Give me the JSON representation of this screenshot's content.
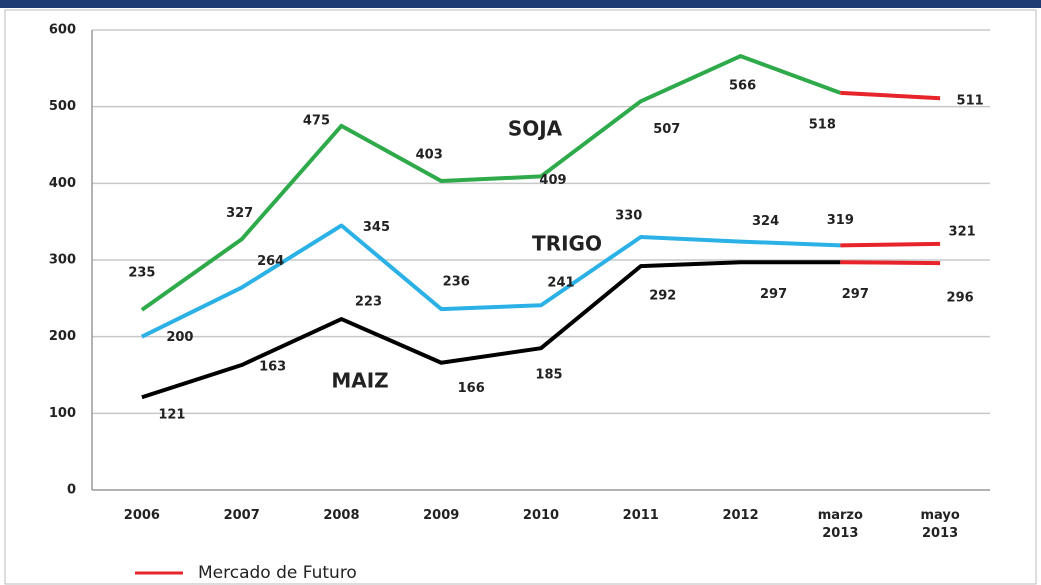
{
  "chart_data": {
    "type": "line",
    "categories": [
      "2006",
      "2007",
      "2008",
      "2009",
      "2010",
      "2011",
      "2012",
      "marzo 2013",
      "mayo 2013"
    ],
    "series": [
      {
        "name": "SOJA",
        "color": "#2eaa4a",
        "label_color": "#4f6b2a",
        "values": [
          235,
          327,
          475,
          403,
          409,
          507,
          566,
          518,
          511
        ]
      },
      {
        "name": "TRIGO",
        "color": "#2bb1e6",
        "label_color": "#3a64a0",
        "values": [
          200,
          264,
          345,
          236,
          241,
          330,
          324,
          319,
          321
        ]
      },
      {
        "name": "MAIZ",
        "color": "#000000",
        "label_color": "#111111",
        "values": [
          121,
          163,
          223,
          166,
          185,
          292,
          297,
          297,
          296
        ]
      }
    ],
    "future": {
      "name": "Mercado de Futuro",
      "color": "#e8242b",
      "start_index": 7
    },
    "ylim": [
      0,
      600
    ],
    "yticks": [
      0,
      100,
      200,
      300,
      400,
      500,
      600
    ],
    "grid": true
  }
}
